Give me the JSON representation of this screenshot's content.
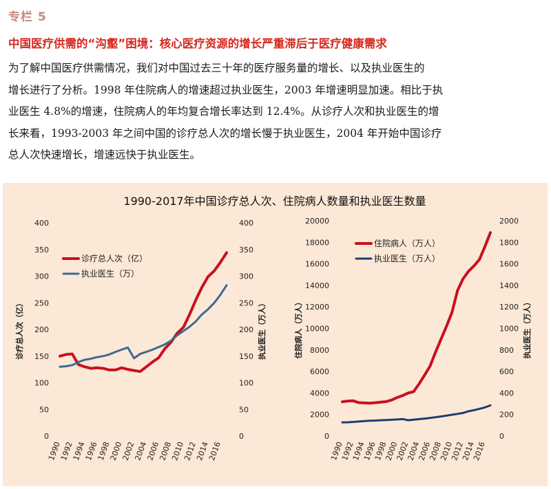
{
  "box": {
    "label": "专栏 5",
    "title": "中国医疗供需的“沟壑”困境：核心医疗资源的增长严重滞后于医疗健康需求",
    "body_lines": [
      "为了解中国医疗供需情况，我们对中国过去三十年的医疗服务量的增长、以及执业医生的",
      "增长进行了分析。1998 年住院病人的增速超过执业医生，2003 年增速明显加速。相比于执",
      "业医生 4.8%的增速，住院病人的年均复合增长率达到 12.4%。从诊疗人次和执业医生的增",
      "长来看，1993-2003 年之间中国的诊疗总人次的增长慢于执业医生，2004 年开始中国诊疗",
      "总人次快速增长，增速远快于执业医生。"
    ]
  },
  "colors": {
    "title_red": "#d6281e",
    "label_pink": "#c9897a",
    "panel_bg": "#fbe8d6",
    "series_red": "#c8101e",
    "series_blue_left": "#3d6a8f",
    "series_navy_right": "#1f3a73"
  },
  "figure_title": "1990-2017年中国诊疗总人次、住院病人数量和执业医生数量",
  "chart_data": [
    {
      "type": "line",
      "x_tick_labels": [
        "1990",
        "1992",
        "1994",
        "1996",
        "1998",
        "2000",
        "2002",
        "2004",
        "2006",
        "2008",
        "2010",
        "2012",
        "2014",
        "2016"
      ],
      "xlim": [
        1990,
        2017
      ],
      "ylabel_left": "诊疗总人次（亿）",
      "ylabel_right": "执业医生（万人）",
      "ylim_left": [
        0,
        400
      ],
      "ylim_right": [
        0,
        400
      ],
      "y_ticks_left": [
        0,
        50,
        100,
        150,
        200,
        250,
        300,
        350,
        400
      ],
      "y_ticks_right": [
        0,
        50,
        100,
        150,
        200,
        250,
        300,
        350,
        400
      ],
      "legend_position": "top-left",
      "grid": false,
      "series": [
        {
          "name": "诊疗总人次（亿）",
          "axis": "left",
          "color": "#c8101e",
          "points": [
            [
              1990,
              150
            ],
            [
              1991,
              153
            ],
            [
              1992,
              154
            ],
            [
              1993,
              134
            ],
            [
              1994,
              130
            ],
            [
              1995,
              127
            ],
            [
              1996,
              128
            ],
            [
              1997,
              127
            ],
            [
              1998,
              124
            ],
            [
              1999,
              124
            ],
            [
              2000,
              128
            ],
            [
              2001,
              125
            ],
            [
              2002,
              123
            ],
            [
              2003,
              121
            ],
            [
              2004,
              130
            ],
            [
              2005,
              139
            ],
            [
              2006,
              147
            ],
            [
              2007,
              164
            ],
            [
              2008,
              176
            ],
            [
              2009,
              193
            ],
            [
              2010,
              204
            ],
            [
              2011,
              228
            ],
            [
              2012,
              255
            ],
            [
              2013,
              279
            ],
            [
              2014,
              299
            ],
            [
              2015,
              310
            ],
            [
              2016,
              326
            ],
            [
              2017,
              344
            ]
          ]
        },
        {
          "name": "执业医生（万）",
          "axis": "right",
          "color": "#3d6a8f",
          "points": [
            [
              1990,
              130
            ],
            [
              1991,
              131
            ],
            [
              1992,
              133
            ],
            [
              1993,
              139
            ],
            [
              1994,
              143
            ],
            [
              1995,
              145
            ],
            [
              1996,
              148
            ],
            [
              1997,
              150
            ],
            [
              1998,
              153
            ],
            [
              1999,
              158
            ],
            [
              2000,
              162
            ],
            [
              2001,
              166
            ],
            [
              2002,
              146
            ],
            [
              2003,
              154
            ],
            [
              2004,
              158
            ],
            [
              2005,
              162
            ],
            [
              2006,
              167
            ],
            [
              2007,
              172
            ],
            [
              2008,
              179
            ],
            [
              2009,
              189
            ],
            [
              2010,
              197
            ],
            [
              2011,
              205
            ],
            [
              2012,
              215
            ],
            [
              2013,
              228
            ],
            [
              2014,
              238
            ],
            [
              2015,
              250
            ],
            [
              2016,
              265
            ],
            [
              2017,
              283
            ]
          ]
        }
      ]
    },
    {
      "type": "line",
      "x_tick_labels": [
        "1990",
        "1992",
        "1994",
        "1996",
        "1998",
        "2000",
        "2002",
        "2004",
        "2006",
        "2008",
        "2010",
        "2012",
        "2014",
        "2016"
      ],
      "xlim": [
        1990,
        2017
      ],
      "ylabel_left": "住院病人（万人）",
      "ylabel_right": "执业医生（万人）",
      "ylim_left": [
        0,
        20000
      ],
      "ylim_right": [
        0,
        2000
      ],
      "y_ticks_left": [
        0,
        2000,
        4000,
        6000,
        8000,
        10000,
        12000,
        14000,
        16000,
        18000,
        20000
      ],
      "y_ticks_right": [
        0,
        200,
        400,
        600,
        800,
        1000,
        1200,
        1400,
        1600,
        1800,
        2000
      ],
      "legend_position": "top-left",
      "grid": false,
      "series": [
        {
          "name": "住院病人（万人）",
          "axis": "left",
          "color": "#c8101e",
          "points": [
            [
              1990,
              3180
            ],
            [
              1991,
              3250
            ],
            [
              1992,
              3280
            ],
            [
              1993,
              3100
            ],
            [
              1994,
              3080
            ],
            [
              1995,
              3050
            ],
            [
              1996,
              3100
            ],
            [
              1997,
              3150
            ],
            [
              1998,
              3200
            ],
            [
              1999,
              3350
            ],
            [
              2000,
              3580
            ],
            [
              2001,
              3760
            ],
            [
              2002,
              4000
            ],
            [
              2003,
              4120
            ],
            [
              2004,
              4850
            ],
            [
              2005,
              5650
            ],
            [
              2006,
              6500
            ],
            [
              2007,
              7800
            ],
            [
              2008,
              9000
            ],
            [
              2009,
              10200
            ],
            [
              2010,
              11500
            ],
            [
              2011,
              13500
            ],
            [
              2012,
              14600
            ],
            [
              2013,
              15300
            ],
            [
              2014,
              15800
            ],
            [
              2015,
              16400
            ],
            [
              2016,
              17600
            ],
            [
              2017,
              18900
            ]
          ]
        },
        {
          "name": "执业医生（万人）",
          "axis": "right",
          "color": "#1f3a73",
          "points": [
            [
              1990,
              127
            ],
            [
              1991,
              128
            ],
            [
              1992,
              131
            ],
            [
              1993,
              135
            ],
            [
              1994,
              139
            ],
            [
              1995,
              142
            ],
            [
              1996,
              144
            ],
            [
              1997,
              147
            ],
            [
              1998,
              149
            ],
            [
              1999,
              152
            ],
            [
              2000,
              154
            ],
            [
              2001,
              158
            ],
            [
              2002,
              147
            ],
            [
              2003,
              152
            ],
            [
              2004,
              157
            ],
            [
              2005,
              162
            ],
            [
              2006,
              168
            ],
            [
              2007,
              175
            ],
            [
              2008,
              182
            ],
            [
              2009,
              190
            ],
            [
              2010,
              198
            ],
            [
              2011,
              206
            ],
            [
              2012,
              215
            ],
            [
              2013,
              230
            ],
            [
              2014,
              240
            ],
            [
              2015,
              253
            ],
            [
              2016,
              266
            ],
            [
              2017,
              285
            ]
          ]
        }
      ]
    }
  ]
}
